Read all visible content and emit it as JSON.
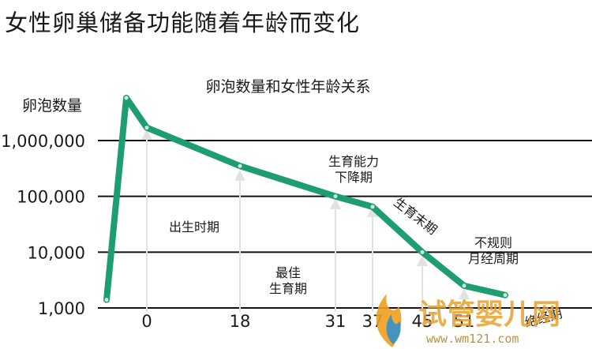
{
  "header": {
    "title": "女性卵巢储备功能随着年龄而变化"
  },
  "watermark": {
    "brand": "试管婴儿网",
    "url": "www.wm121.com"
  },
  "colors": {
    "line": "#1e9e6e",
    "grid": "#111111",
    "arrow": "#e2e2e2",
    "text": "#1a1a1a"
  },
  "chart_data": {
    "type": "line",
    "title": "卵泡数量和女性年龄关系",
    "ylabel": "卵泡数量",
    "yscale": "log",
    "ylim": [
      1000,
      2000000
    ],
    "grid": true,
    "y_ticks": [
      {
        "value": 1000,
        "label": "1,000"
      },
      {
        "value": 10000,
        "label": "10,000"
      },
      {
        "value": 100000,
        "label": "100,000"
      },
      {
        "value": 1000000,
        "label": "1,000,000"
      }
    ],
    "x_ticks": [
      "0",
      "18",
      "31",
      "37",
      "45",
      "51"
    ],
    "x": [
      "",
      "",
      "0",
      "18",
      "31",
      "37",
      "45",
      "51",
      "53"
    ],
    "y": [
      1400,
      3500000,
      1700000,
      350000,
      100000,
      65000,
      10000,
      2500,
      1700
    ],
    "annotations": [
      {
        "text": [
          "出生时期"
        ],
        "at": "0-18"
      },
      {
        "text": [
          "最佳",
          "生育期"
        ],
        "at": "18-31"
      },
      {
        "text": [
          "生育能力",
          "下降期"
        ],
        "at": "31"
      },
      {
        "text": [
          "生育末期"
        ],
        "at": "37-45"
      },
      {
        "text": [
          "不规则",
          "月经周期"
        ],
        "at": "45-51"
      },
      {
        "text": [
          "绝经期"
        ],
        "at": "51"
      }
    ]
  }
}
